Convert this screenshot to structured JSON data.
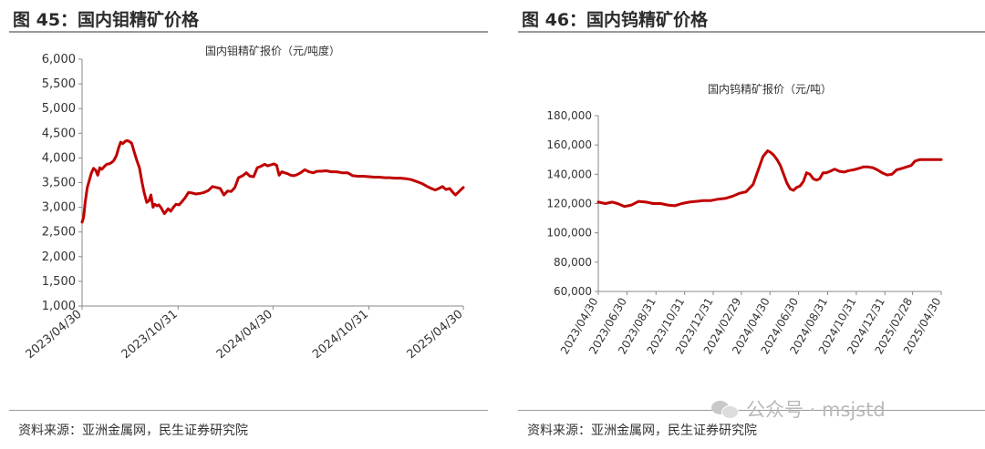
{
  "panels": [
    {
      "title": "图 45：国内钼精矿价格",
      "source": "资料来源：亚洲金属网，民生证券研究院"
    },
    {
      "title": "图 46：国内钨精矿价格",
      "source": "资料来源：亚洲金属网，民生证券研究院"
    }
  ],
  "watermark": {
    "icon": "wechat-icon",
    "text": "公众号 · msjstd"
  },
  "chart_data": [
    {
      "type": "line",
      "title": "国内钼精矿报价（元/吨度）",
      "ylim": [
        1000,
        6000
      ],
      "yticks": [
        1000,
        1500,
        2000,
        2500,
        3000,
        3500,
        4000,
        4500,
        5000,
        5500,
        6000
      ],
      "ytick_labels": [
        "1,000",
        "1,500",
        "2,000",
        "2,500",
        "3,000",
        "3,500",
        "4,000",
        "4,500",
        "5,000",
        "5,500",
        "6,000"
      ],
      "xlim": [
        "2023-04-30",
        "2025-04-30"
      ],
      "xtick_labels": [
        "2023/04/30",
        "2023/10/31",
        "2024/04/30",
        "2024/10/31",
        "2025/04/30"
      ],
      "grid": false,
      "color": "#c00000",
      "series": [
        {
          "x": [
            "2023-04-30",
            "2023-05-03",
            "2023-05-06",
            "2023-05-10",
            "2023-05-14",
            "2023-05-18",
            "2023-05-22",
            "2023-05-26",
            "2023-05-30",
            "2023-06-03",
            "2023-06-07",
            "2023-06-12",
            "2023-06-16",
            "2023-06-21",
            "2023-06-26",
            "2023-06-30",
            "2023-07-05",
            "2023-07-09",
            "2023-07-13",
            "2023-07-17",
            "2023-07-22",
            "2023-07-26",
            "2023-07-30",
            "2023-08-03",
            "2023-08-08",
            "2023-08-13",
            "2023-08-18",
            "2023-08-23",
            "2023-08-27",
            "2023-09-01",
            "2023-09-05",
            "2023-09-09",
            "2023-09-13",
            "2023-09-16",
            "2023-09-19",
            "2023-09-21",
            "2023-09-24",
            "2023-09-28",
            "2023-10-05",
            "2023-10-12",
            "2023-10-17",
            "2023-10-22",
            "2023-10-27",
            "2023-11-02",
            "2023-11-08",
            "2023-11-14",
            "2023-11-20",
            "2023-11-27",
            "2023-12-04",
            "2023-12-12",
            "2023-12-20",
            "2023-12-28",
            "2024-01-05",
            "2024-01-13",
            "2024-01-20",
            "2024-01-27",
            "2024-02-03",
            "2024-02-10",
            "2024-02-17",
            "2024-02-24",
            "2024-03-03",
            "2024-03-10",
            "2024-03-17",
            "2024-03-24",
            "2024-03-31",
            "2024-04-07",
            "2024-04-14",
            "2024-04-20",
            "2024-04-26",
            "2024-05-02",
            "2024-05-07",
            "2024-05-12",
            "2024-05-17",
            "2024-05-22",
            "2024-05-28",
            "2024-06-03",
            "2024-06-09",
            "2024-06-15",
            "2024-06-22",
            "2024-06-30",
            "2024-07-08",
            "2024-07-16",
            "2024-07-24",
            "2024-08-01",
            "2024-08-10",
            "2024-08-20",
            "2024-08-30",
            "2024-09-10",
            "2024-09-20",
            "2024-09-30",
            "2024-10-10",
            "2024-10-20",
            "2024-10-31",
            "2024-11-10",
            "2024-11-20",
            "2024-11-30",
            "2024-12-10",
            "2024-12-20",
            "2024-12-31",
            "2025-01-10",
            "2025-01-20",
            "2025-01-31",
            "2025-02-10",
            "2025-02-20",
            "2025-02-28",
            "2025-03-07",
            "2025-03-14",
            "2025-03-21",
            "2025-03-28",
            "2025-04-04",
            "2025-04-10",
            "2025-04-15",
            "2025-04-20",
            "2025-04-25",
            "2025-04-30"
          ],
          "y": [
            2700,
            2800,
            3100,
            3400,
            3550,
            3700,
            3790,
            3750,
            3650,
            3800,
            3770,
            3830,
            3870,
            3880,
            3910,
            3950,
            4050,
            4200,
            4320,
            4290,
            4340,
            4350,
            4330,
            4300,
            4120,
            3950,
            3800,
            3500,
            3300,
            3100,
            3130,
            3250,
            3000,
            3060,
            3040,
            3030,
            3050,
            3000,
            2870,
            2970,
            2920,
            3000,
            3060,
            3050,
            3120,
            3200,
            3300,
            3290,
            3270,
            3280,
            3300,
            3340,
            3420,
            3400,
            3380,
            3250,
            3330,
            3320,
            3400,
            3600,
            3640,
            3700,
            3630,
            3620,
            3800,
            3830,
            3870,
            3840,
            3860,
            3880,
            3850,
            3650,
            3720,
            3700,
            3680,
            3650,
            3640,
            3660,
            3700,
            3760,
            3720,
            3700,
            3730,
            3730,
            3740,
            3720,
            3720,
            3700,
            3700,
            3640,
            3630,
            3630,
            3620,
            3610,
            3610,
            3600,
            3600,
            3590,
            3590,
            3580,
            3560,
            3520,
            3480,
            3420,
            3380,
            3350,
            3380,
            3420,
            3360,
            3380,
            3300,
            3250,
            3300,
            3350,
            3400
          ]
        }
      ]
    },
    {
      "type": "line",
      "title": "国内钨精矿报价（元/吨）",
      "ylim": [
        60000,
        180000
      ],
      "yticks": [
        60000,
        80000,
        100000,
        120000,
        140000,
        160000,
        180000
      ],
      "ytick_labels": [
        "60,000",
        "80,000",
        "100,000",
        "120,000",
        "140,000",
        "160,000",
        "180,000"
      ],
      "xlim": [
        "2023-04-30",
        "2025-04-30"
      ],
      "xtick_labels": [
        "2023/04/30",
        "2023/06/30",
        "2023/08/31",
        "2023/10/31",
        "2023/12/31",
        "2024/02/29",
        "2024/04/30",
        "2024/06/30",
        "2024/08/31",
        "2024/10/31",
        "2024/12/31",
        "2025/02/28",
        "2025/04/30"
      ],
      "grid": false,
      "color": "#c00000",
      "series": [
        {
          "x": [
            "2023-04-30",
            "2023-05-15",
            "2023-05-30",
            "2023-06-10",
            "2023-06-25",
            "2023-07-10",
            "2023-07-25",
            "2023-08-10",
            "2023-08-25",
            "2023-09-10",
            "2023-09-25",
            "2023-10-10",
            "2023-10-25",
            "2023-11-10",
            "2023-11-25",
            "2023-12-10",
            "2023-12-25",
            "2024-01-10",
            "2024-01-25",
            "2024-02-10",
            "2024-02-25",
            "2024-03-10",
            "2024-03-25",
            "2024-04-05",
            "2024-04-15",
            "2024-04-25",
            "2024-05-01",
            "2024-05-08",
            "2024-05-15",
            "2024-05-22",
            "2024-05-29",
            "2024-06-05",
            "2024-06-12",
            "2024-06-19",
            "2024-06-26",
            "2024-07-03",
            "2024-07-10",
            "2024-07-17",
            "2024-07-24",
            "2024-07-31",
            "2024-08-07",
            "2024-08-14",
            "2024-08-21",
            "2024-08-28",
            "2024-09-05",
            "2024-09-15",
            "2024-09-25",
            "2024-10-05",
            "2024-10-15",
            "2024-10-25",
            "2024-11-05",
            "2024-11-15",
            "2024-11-25",
            "2024-12-05",
            "2024-12-15",
            "2024-12-25",
            "2025-01-05",
            "2025-01-15",
            "2025-01-25",
            "2025-02-05",
            "2025-02-15",
            "2025-02-25",
            "2025-03-05",
            "2025-03-15",
            "2025-03-25",
            "2025-04-05",
            "2025-04-15",
            "2025-04-25",
            "2025-04-30"
          ],
          "y": [
            121000,
            120000,
            121000,
            120000,
            118000,
            119000,
            121500,
            121000,
            120000,
            120000,
            119000,
            118500,
            120000,
            121000,
            121500,
            122000,
            122000,
            123000,
            123500,
            125000,
            127000,
            128000,
            133000,
            143000,
            152000,
            156000,
            155000,
            153000,
            150000,
            146000,
            140000,
            134000,
            130000,
            129000,
            131000,
            132000,
            135000,
            141000,
            140000,
            137000,
            136000,
            137000,
            141000,
            141000,
            142000,
            143500,
            142000,
            141500,
            142500,
            143000,
            144000,
            145000,
            145000,
            144500,
            143000,
            141000,
            139500,
            140000,
            143000,
            144000,
            145000,
            146000,
            149000,
            150000,
            150000,
            150000,
            150000,
            150000,
            150000
          ]
        }
      ]
    }
  ]
}
